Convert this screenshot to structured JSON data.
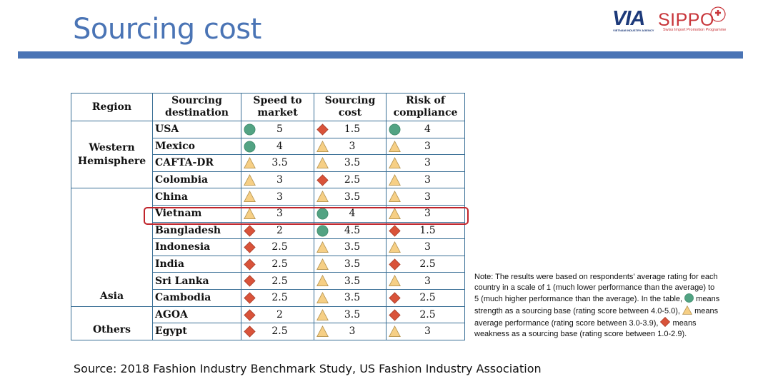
{
  "title": "Sourcing cost",
  "logo": {
    "via": "VIA",
    "via_sub": "VIETNAM INDUSTRY AGENCY",
    "sippo": "SIPPO",
    "sippo_sub": "Swiss Import Promotion Programme"
  },
  "table": {
    "headers": [
      "Region",
      "Sourcing destination",
      "Speed to market",
      "Sourcing cost",
      "Risk of compliance"
    ],
    "region_labels": {
      "western": "Western Hemisphere",
      "asia": "Asia",
      "others": "Others"
    },
    "rows": [
      {
        "dest": "USA",
        "speed": {
          "sym": "circle",
          "val": "5"
        },
        "cost": {
          "sym": "diamond",
          "val": "1.5"
        },
        "risk": {
          "sym": "circle",
          "val": "4"
        }
      },
      {
        "dest": "Mexico",
        "speed": {
          "sym": "circle",
          "val": "4"
        },
        "cost": {
          "sym": "triangle",
          "val": "3"
        },
        "risk": {
          "sym": "triangle",
          "val": "3"
        }
      },
      {
        "dest": "CAFTA-DR",
        "speed": {
          "sym": "triangle",
          "val": "3.5"
        },
        "cost": {
          "sym": "triangle",
          "val": "3.5"
        },
        "risk": {
          "sym": "triangle",
          "val": "3"
        }
      },
      {
        "dest": "Colombia",
        "speed": {
          "sym": "triangle",
          "val": "3"
        },
        "cost": {
          "sym": "diamond",
          "val": "2.5"
        },
        "risk": {
          "sym": "triangle",
          "val": "3"
        }
      },
      {
        "dest": "China",
        "speed": {
          "sym": "triangle",
          "val": "3"
        },
        "cost": {
          "sym": "triangle",
          "val": "3.5"
        },
        "risk": {
          "sym": "triangle",
          "val": "3"
        }
      },
      {
        "dest": "Vietnam",
        "speed": {
          "sym": "triangle",
          "val": "3"
        },
        "cost": {
          "sym": "circle",
          "val": "4"
        },
        "risk": {
          "sym": "triangle",
          "val": "3"
        }
      },
      {
        "dest": "Bangladesh",
        "speed": {
          "sym": "diamond",
          "val": "2"
        },
        "cost": {
          "sym": "circle",
          "val": "4.5"
        },
        "risk": {
          "sym": "diamond",
          "val": "1.5"
        }
      },
      {
        "dest": "Indonesia",
        "speed": {
          "sym": "diamond",
          "val": "2.5"
        },
        "cost": {
          "sym": "triangle",
          "val": "3.5"
        },
        "risk": {
          "sym": "triangle",
          "val": "3"
        }
      },
      {
        "dest": "India",
        "speed": {
          "sym": "diamond",
          "val": "2.5"
        },
        "cost": {
          "sym": "triangle",
          "val": "3.5"
        },
        "risk": {
          "sym": "diamond",
          "val": "2.5"
        }
      },
      {
        "dest": "Sri Lanka",
        "speed": {
          "sym": "diamond",
          "val": "2.5"
        },
        "cost": {
          "sym": "triangle",
          "val": "3.5"
        },
        "risk": {
          "sym": "triangle",
          "val": "3"
        }
      },
      {
        "dest": "Cambodia",
        "speed": {
          "sym": "diamond",
          "val": "2.5"
        },
        "cost": {
          "sym": "triangle",
          "val": "3.5"
        },
        "risk": {
          "sym": "diamond",
          "val": "2.5"
        }
      },
      {
        "dest": "AGOA",
        "speed": {
          "sym": "diamond",
          "val": "2"
        },
        "cost": {
          "sym": "triangle",
          "val": "3.5"
        },
        "risk": {
          "sym": "diamond",
          "val": "2.5"
        }
      },
      {
        "dest": "Egypt",
        "speed": {
          "sym": "diamond",
          "val": "2.5"
        },
        "cost": {
          "sym": "triangle",
          "val": "3"
        },
        "risk": {
          "sym": "triangle",
          "val": "3"
        }
      }
    ]
  },
  "note": {
    "part1": "Note: The results were based on respondents’ average rating for each country  in a scale of 1 (much lower performance  than the average) to 5 (much higher performance  than the average). In the table, ",
    "part2": " means strength as a sourcing base (rating score between 4.0-5.0), ",
    "part3": " means average performance  (rating score between 3.0-3.9), ",
    "part4": " means weakness as a sourcing base (rating score between 1.0-2.9)."
  },
  "source": "Source: 2018 Fashion Industry Benchmark Study, US Fashion Industry Association",
  "colors": {
    "title": "#4a74b5",
    "circle": "#52a383",
    "triangle": "#f6cf85",
    "diamond": "#d9533a",
    "highlight": "#c0242b"
  }
}
